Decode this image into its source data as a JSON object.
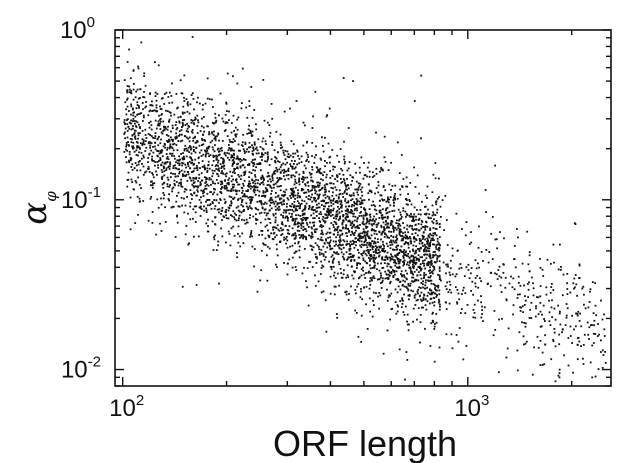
{
  "chart_data": {
    "type": "scatter",
    "title": "",
    "xlabel": "ORF length",
    "ylabel": "α",
    "ylabel_sub": "φ",
    "xscale": "log",
    "yscale": "log",
    "xlim": [
      95,
      2600
    ],
    "ylim": [
      0.008,
      1.0
    ],
    "grid": false,
    "marker_color": "#111111",
    "x_ticks": [
      {
        "base": "10",
        "exp": "2",
        "value": 100
      },
      {
        "base": "10",
        "exp": "3",
        "value": 1000
      }
    ],
    "y_ticks": [
      {
        "base": "10",
        "exp": "-2",
        "value": 0.01
      },
      {
        "base": "10",
        "exp": "-1",
        "value": 0.1
      },
      {
        "base": "10",
        "exp": "0",
        "value": 1
      }
    ],
    "trend": {
      "slope_loglog": -0.87,
      "intercept_at_x100": 0.26,
      "log10_scatter_sd": 0.19
    },
    "n_points": 4200
  }
}
